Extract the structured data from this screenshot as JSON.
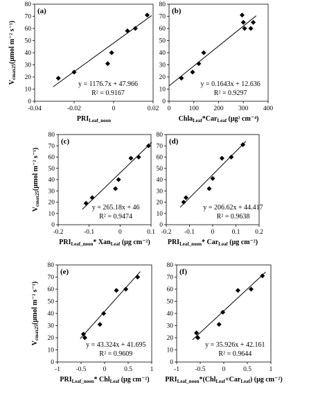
{
  "chart_data": [
    {
      "type": "scatter",
      "panel": "(a)",
      "xlabel": {
        "main": "PRI",
        "sub": "Leaf_noon",
        "rest": ""
      },
      "xlim": [
        -0.04,
        0.02
      ],
      "xticks": [
        -0.04,
        -0.02,
        0,
        0.02
      ],
      "xtick_labels": [
        "-0.04",
        "-0.02",
        "0",
        "0.02"
      ],
      "ylim": [
        0,
        80
      ],
      "yticks": [
        0,
        10,
        20,
        30,
        40,
        50,
        60,
        70,
        80
      ],
      "yshow": true,
      "x": [
        -0.028,
        -0.02,
        -0.003,
        -0.001,
        0.007,
        0.011,
        0.017
      ],
      "y": [
        19,
        24,
        31,
        40,
        58,
        60,
        71
      ],
      "fit": {
        "slope": 1176.7,
        "intercept": 47.966
      },
      "equation": "y = 1176.7x + 47.966",
      "r2": "R² = 0.9167"
    },
    {
      "type": "scatter",
      "panel": "(b)",
      "xlabel": {
        "main": "Chla",
        "sub": "Leaf",
        "rest": "*Car",
        "sub2": "Leaf",
        "tail": " (μg² cm⁻⁴)"
      },
      "xlim": [
        0,
        400
      ],
      "xticks": [
        0,
        100,
        200,
        300,
        400
      ],
      "xtick_labels": [
        "0",
        "100",
        "200",
        "300",
        "400"
      ],
      "ylim": [
        0,
        80
      ],
      "yticks": [
        0,
        10,
        20,
        30,
        40,
        50,
        60,
        70,
        80
      ],
      "yshow": true,
      "x": [
        50,
        95,
        120,
        140,
        295,
        300,
        305,
        330,
        340
      ],
      "y": [
        19,
        24,
        31,
        40,
        71,
        65,
        60,
        60,
        65
      ],
      "fit": {
        "slope": 0.1643,
        "intercept": 12.636
      },
      "equation": "y = 0.1643x + 12.636",
      "r2": "R² = 0.9297"
    },
    {
      "type": "scatter",
      "panel": "(c)",
      "xlabel": {
        "main": "PRI",
        "sub": "Leaf_noon",
        "rest": "* Xan",
        "sub2": "Leaf",
        "tail": " (μg cm⁻²)"
      },
      "xlim": [
        -0.2,
        0.1
      ],
      "xticks": [
        -0.2,
        -0.1,
        0,
        0.1
      ],
      "xtick_labels": [
        "-0.2",
        "-0.1",
        "0",
        "0.1"
      ],
      "ylim": [
        0,
        80
      ],
      "yticks": [
        0,
        10,
        20,
        30,
        40,
        50,
        60,
        70,
        80
      ],
      "yshow": true,
      "x": [
        -0.11,
        -0.09,
        -0.015,
        -0.005,
        0.035,
        0.06,
        0.092
      ],
      "y": [
        19,
        24,
        32,
        40,
        59,
        60,
        70
      ],
      "fit": {
        "slope": 265.18,
        "intercept": 46
      },
      "equation": "y = 265.18x + 46",
      "r2": "R² = 0.9474"
    },
    {
      "type": "scatter",
      "panel": "(d)",
      "xlabel": {
        "main": "PRI",
        "sub": "Leaf_noon",
        "rest": "* Car",
        "sub2": "Leaf",
        "tail": " (μg cm⁻²)"
      },
      "xlim": [
        -0.2,
        0.2
      ],
      "xticks": [
        -0.2,
        -0.1,
        0,
        0.1,
        0.2
      ],
      "xtick_labels": [
        "-0.2",
        "-0.1",
        "0",
        "0.1",
        "0.2"
      ],
      "ylim": [
        0,
        80
      ],
      "yticks": [
        0,
        10,
        20,
        30,
        40,
        50,
        60,
        70,
        80
      ],
      "yshow": true,
      "x": [
        -0.125,
        -0.115,
        -0.015,
        0.0,
        0.04,
        0.08,
        0.13
      ],
      "y": [
        20,
        24,
        32,
        41,
        59,
        60,
        71
      ],
      "fit": {
        "slope": 206.62,
        "intercept": 44.417
      },
      "equation": "y = 206.62x + 44.417",
      "r2": "R² = 0.9638"
    },
    {
      "type": "scatter",
      "panel": "(e)",
      "xlabel": {
        "main": "PRI",
        "sub": "Leaf_noon",
        "rest": "* Chl",
        "sub2": "Leaf",
        "tail": " (μg cm⁻²)"
      },
      "xlim": [
        -1,
        1
      ],
      "xticks": [
        -1,
        -0.5,
        0,
        0.5,
        1
      ],
      "xtick_labels": [
        "-1",
        "-0.5",
        "0",
        "0.5",
        "1"
      ],
      "ylim": [
        0,
        80
      ],
      "yticks": [
        0,
        10,
        20,
        30,
        40,
        50,
        60,
        70,
        80
      ],
      "yshow": true,
      "x": [
        -0.45,
        -0.42,
        -0.1,
        -0.02,
        0.25,
        0.45,
        0.7
      ],
      "y": [
        23,
        20,
        31,
        40,
        59,
        60,
        70
      ],
      "fit": {
        "slope": 43.324,
        "intercept": 41.695
      },
      "equation": "y = 43.324x + 41.695",
      "r2": "R² = 0.9609"
    },
    {
      "type": "scatter",
      "panel": "(f)",
      "xlabel": {
        "main": "PRI",
        "sub": "Leaf_noon",
        "rest": "*(Chl",
        "sub2": "Leaf",
        "rest2": "+Car",
        "sub3": "Leaf",
        "tail": ") (μg cm⁻²)"
      },
      "xlim": [
        -1,
        1
      ],
      "xticks": [
        -1,
        -0.5,
        0,
        0.5,
        1
      ],
      "xtick_labels": [
        "-1",
        "-0.5",
        "0",
        "0.5",
        "1"
      ],
      "ylim": [
        0,
        80
      ],
      "yticks": [
        0,
        10,
        20,
        30,
        40,
        50,
        60,
        70,
        80
      ],
      "yshow": true,
      "x": [
        -0.58,
        -0.55,
        -0.1,
        -0.02,
        0.3,
        0.58,
        0.82
      ],
      "y": [
        24,
        20,
        31,
        41,
        59,
        60,
        71
      ],
      "fit": {
        "slope": 35.926,
        "intercept": 42.161
      },
      "equation": "y = 35.926x + 42.161",
      "r2": "R² = 0.9644"
    }
  ],
  "ylabel": {
    "main": "V",
    "sub": "cmax25",
    "rest": "(μmol m⁻² s⁻¹)"
  }
}
